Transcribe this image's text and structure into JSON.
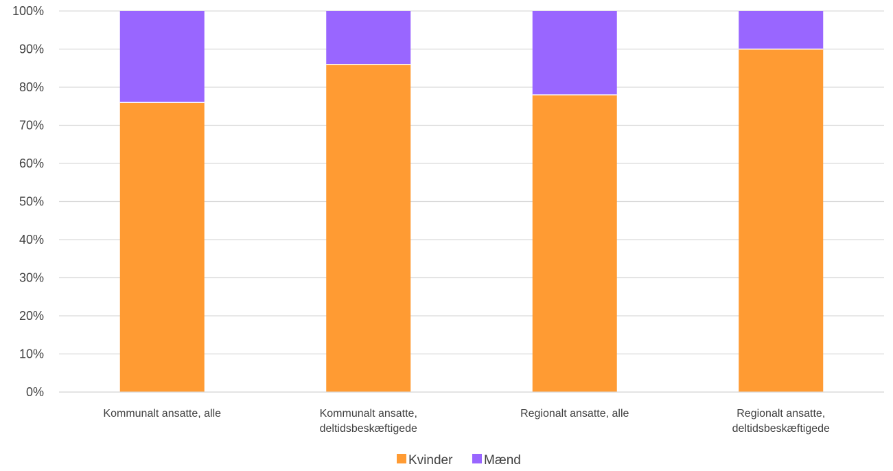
{
  "chart_data": {
    "type": "bar",
    "stacked": true,
    "normalized": true,
    "categories": [
      [
        "Kommunalt ansatte, alle"
      ],
      [
        "Kommunalt ansatte,",
        "deltidsbeskæftigede"
      ],
      [
        "Regionalt ansatte, alle"
      ],
      [
        "Regionalt ansatte,",
        "deltidsbeskæftigede"
      ]
    ],
    "series": [
      {
        "name": "Kvinder",
        "color": "#FF9B33",
        "values": [
          0.76,
          0.86,
          0.78,
          0.9
        ]
      },
      {
        "name": "Mænd",
        "color": "#9966FF",
        "values": [
          0.24,
          0.14,
          0.22,
          0.1
        ]
      }
    ],
    "ylim": [
      0,
      1
    ],
    "yticks": [
      "0%",
      "10%",
      "20%",
      "30%",
      "40%",
      "50%",
      "60%",
      "70%",
      "80%",
      "90%",
      "100%"
    ],
    "grid": true,
    "grid_color": "#D9D9D9",
    "legend_position": "bottom-center",
    "title": "",
    "xlabel": "",
    "ylabel": ""
  }
}
